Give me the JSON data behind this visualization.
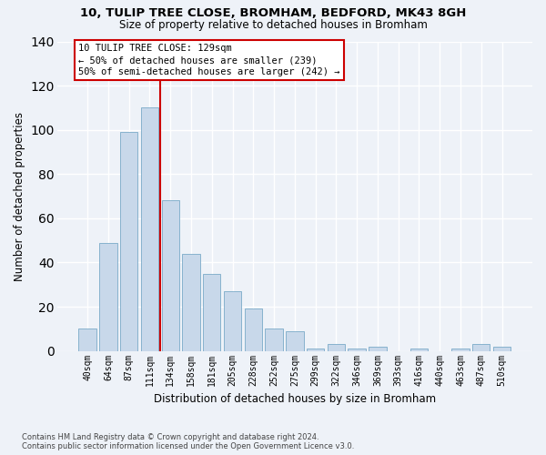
{
  "title": "10, TULIP TREE CLOSE, BROMHAM, BEDFORD, MK43 8GH",
  "subtitle": "Size of property relative to detached houses in Bromham",
  "xlabel": "Distribution of detached houses by size in Bromham",
  "ylabel": "Number of detached properties",
  "bar_color": "#c8d8ea",
  "bar_edge_color": "#7aaac8",
  "background_color": "#eef2f8",
  "grid_color": "#ffffff",
  "categories": [
    "40sqm",
    "64sqm",
    "87sqm",
    "111sqm",
    "134sqm",
    "158sqm",
    "181sqm",
    "205sqm",
    "228sqm",
    "252sqm",
    "275sqm",
    "299sqm",
    "322sqm",
    "346sqm",
    "369sqm",
    "393sqm",
    "416sqm",
    "440sqm",
    "463sqm",
    "487sqm",
    "510sqm"
  ],
  "values": [
    10,
    49,
    99,
    110,
    68,
    44,
    35,
    27,
    19,
    10,
    9,
    1,
    3,
    1,
    2,
    0,
    1,
    0,
    1,
    3,
    2
  ],
  "vline_x": 3.5,
  "vline_color": "#cc0000",
  "annotation_line1": "10 TULIP TREE CLOSE: 129sqm",
  "annotation_line2": "← 50% of detached houses are smaller (239)",
  "annotation_line3": "50% of semi-detached houses are larger (242) →",
  "annotation_box_color": "#ffffff",
  "annotation_box_edge_color": "#cc0000",
  "footer_text": "Contains HM Land Registry data © Crown copyright and database right 2024.\nContains public sector information licensed under the Open Government Licence v3.0.",
  "ylim": [
    0,
    140
  ],
  "yticks": [
    0,
    20,
    40,
    60,
    80,
    100,
    120,
    140
  ]
}
